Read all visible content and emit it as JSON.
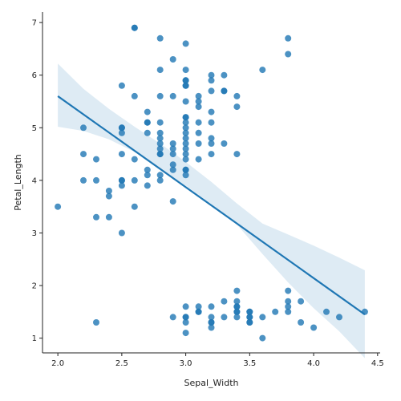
{
  "chart_data": {
    "type": "scatter",
    "xlabel": "Sepal_Width",
    "ylabel": "Petal_Length",
    "xlim": [
      1.88,
      4.52
    ],
    "ylim": [
      0.72,
      7.2
    ],
    "xticks": [
      {
        "value": 2.0,
        "label": "2.0"
      },
      {
        "value": 2.5,
        "label": "2.5"
      },
      {
        "value": 3.0,
        "label": "3.0"
      },
      {
        "value": 3.5,
        "label": "3.5"
      },
      {
        "value": 4.0,
        "label": "4.0"
      },
      {
        "value": 4.5,
        "label": "4.5"
      }
    ],
    "yticks": [
      {
        "value": 1,
        "label": "1"
      },
      {
        "value": 2,
        "label": "2"
      },
      {
        "value": 3,
        "label": "3"
      },
      {
        "value": 4,
        "label": "4"
      },
      {
        "value": 5,
        "label": "5"
      },
      {
        "value": 6,
        "label": "6"
      },
      {
        "value": 7,
        "label": "7"
      }
    ],
    "grid": false,
    "regression": {
      "x": [
        2.0,
        4.4
      ],
      "y": [
        5.6,
        1.45
      ],
      "ci": {
        "x": [
          2.0,
          2.2,
          2.4,
          2.6,
          2.8,
          3.0,
          3.2,
          3.4,
          3.6,
          3.8,
          4.0,
          4.2,
          4.4
        ],
        "upper": [
          6.22,
          5.74,
          5.36,
          5.02,
          4.7,
          4.35,
          3.97,
          3.56,
          3.18,
          2.97,
          2.76,
          2.53,
          2.29
        ],
        "lower": [
          5.02,
          4.94,
          4.78,
          4.54,
          4.2,
          3.9,
          3.55,
          3.16,
          2.6,
          2.06,
          1.57,
          1.13,
          0.62
        ]
      }
    },
    "series": [
      {
        "x": [
          2.0,
          2.2,
          2.2,
          2.2,
          2.3,
          2.3,
          2.3,
          2.3,
          2.4,
          2.4,
          2.4,
          2.5,
          2.5,
          2.5,
          2.5,
          2.5,
          2.5,
          2.5,
          2.5,
          2.5,
          2.6,
          2.6,
          2.6,
          2.6,
          2.6,
          2.6,
          2.7,
          2.7,
          2.7,
          2.7,
          2.7,
          2.7,
          2.7,
          2.8,
          2.8,
          2.8,
          2.8,
          2.8,
          2.8,
          2.8,
          2.8,
          2.8,
          2.8,
          2.8,
          2.8,
          2.9,
          2.9,
          2.9,
          2.9,
          2.9,
          2.9,
          2.9,
          2.9,
          2.9,
          3.0,
          3.0,
          3.0,
          3.0,
          3.0,
          3.0,
          3.0,
          3.0,
          3.0,
          3.0,
          3.0,
          3.0,
          3.0,
          3.0,
          3.0,
          3.0,
          3.0,
          3.0,
          3.0,
          3.0,
          3.0,
          3.0,
          3.0,
          3.0,
          3.0,
          3.1,
          3.1,
          3.1,
          3.1,
          3.1,
          3.1,
          3.1,
          3.1,
          3.1,
          3.1,
          3.2,
          3.2,
          3.2,
          3.2,
          3.2,
          3.2,
          3.2,
          3.2,
          3.2,
          3.2,
          3.2,
          3.2,
          3.2,
          3.3,
          3.3,
          3.3,
          3.3,
          3.3,
          3.3,
          3.4,
          3.4,
          3.4,
          3.4,
          3.4,
          3.4,
          3.4,
          3.4,
          3.4,
          3.4,
          3.5,
          3.5,
          3.5,
          3.5,
          3.5,
          3.5,
          3.6,
          3.6,
          3.6,
          3.7,
          3.8,
          3.8,
          3.8,
          3.8,
          3.8,
          3.8,
          3.9,
          3.9,
          4.0,
          4.1,
          4.2,
          4.4
        ],
        "y": [
          3.5,
          5.0,
          4.5,
          4.0,
          4.4,
          4.0,
          3.3,
          1.3,
          3.8,
          3.7,
          3.3,
          5.0,
          4.9,
          5.0,
          4.5,
          4.0,
          3.9,
          4.0,
          3.0,
          5.8,
          6.9,
          5.6,
          4.4,
          4.0,
          3.5,
          6.9,
          5.3,
          5.1,
          4.9,
          4.2,
          4.1,
          3.9,
          5.1,
          6.7,
          6.1,
          5.6,
          5.1,
          4.9,
          4.8,
          4.7,
          4.6,
          4.5,
          4.1,
          4.0,
          4.5,
          6.3,
          5.6,
          4.7,
          4.6,
          4.5,
          4.3,
          4.2,
          3.6,
          1.4,
          6.6,
          6.1,
          5.9,
          5.8,
          5.5,
          5.2,
          5.1,
          5.0,
          4.9,
          4.8,
          4.6,
          4.5,
          4.4,
          4.2,
          4.1,
          1.6,
          1.4,
          1.4,
          1.3,
          1.1,
          5.8,
          5.2,
          4.7,
          4.2,
          5.9,
          5.6,
          5.5,
          5.4,
          5.1,
          4.9,
          4.7,
          4.4,
          1.6,
          1.5,
          1.5,
          6.0,
          5.9,
          5.7,
          5.3,
          5.1,
          4.8,
          4.7,
          4.5,
          1.6,
          1.4,
          1.3,
          1.2,
          1.3,
          6.0,
          5.7,
          4.7,
          1.7,
          1.4,
          5.7,
          5.6,
          5.4,
          4.5,
          1.9,
          1.7,
          1.6,
          1.5,
          1.4,
          1.5,
          1.6,
          1.5,
          1.4,
          1.3,
          1.3,
          1.4,
          1.5,
          6.1,
          1.4,
          1.0,
          1.5,
          6.7,
          6.4,
          1.9,
          1.7,
          1.6,
          1.5,
          1.7,
          1.3,
          1.2,
          1.5,
          1.4,
          1.5
        ]
      }
    ],
    "colors": {
      "point": "#1f77b4",
      "line": "#1f77b4",
      "band": "#1f77b4",
      "axis": "#222222"
    }
  }
}
